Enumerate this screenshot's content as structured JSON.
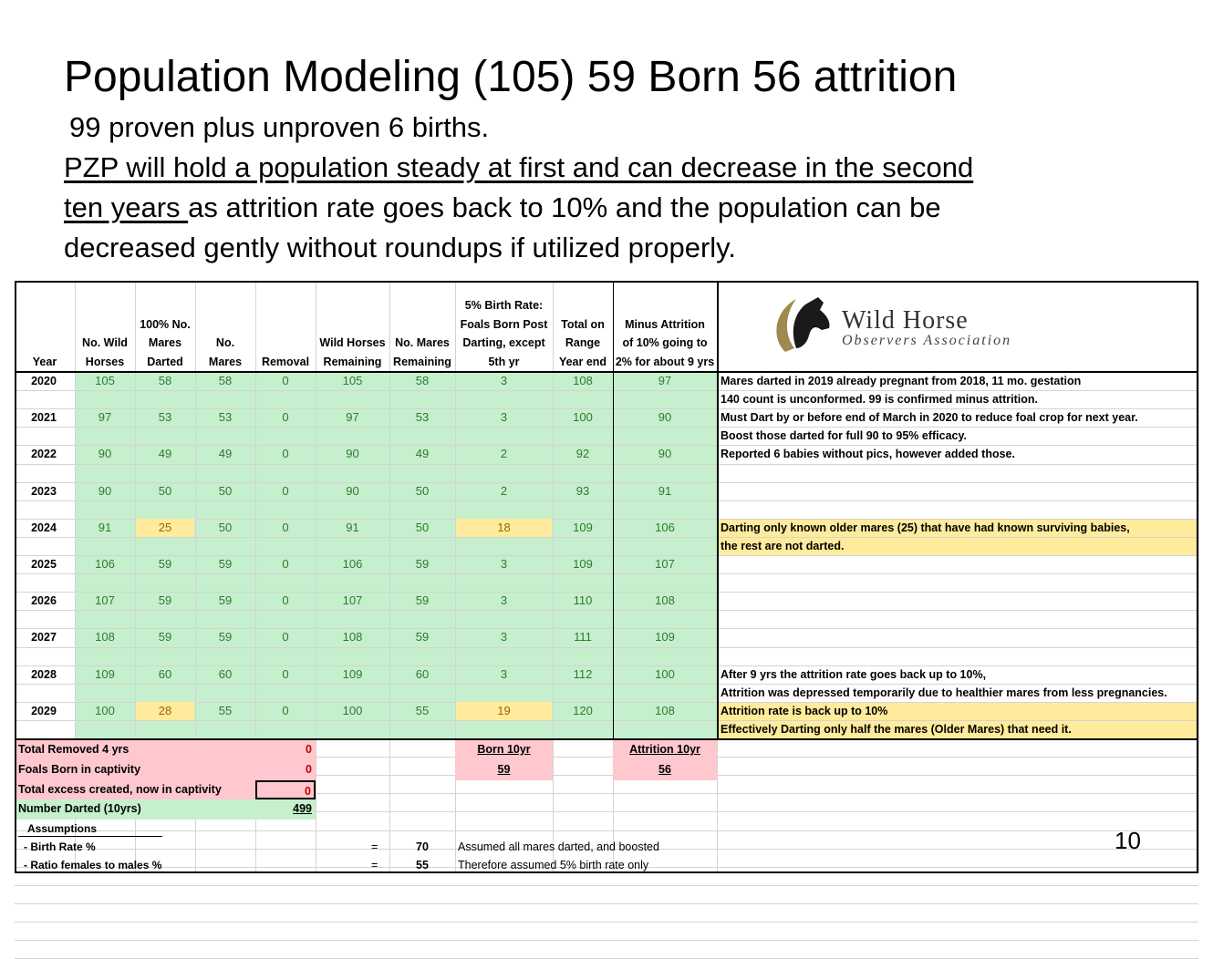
{
  "slide": {
    "title": "Population Modeling (105) 59 Born 56 attrition",
    "line1": "99 proven plus unproven 6 births.",
    "line2_underlined": "PZP will hold a population steady at first and can decrease in the second",
    "line3_underlined": "ten years ",
    "line3_rest": "as attrition rate goes back to 10% and the population can be",
    "line4": "decreased gently without roundups if utilized properly.",
    "page_number": "10"
  },
  "logo": {
    "line1": "Wild Horse",
    "line2": "Observers Association"
  },
  "table": {
    "headers": [
      [
        "Year"
      ],
      [
        "No. Wild",
        "Horses"
      ],
      [
        "100% No.",
        "Mares",
        "Darted"
      ],
      [
        "No.",
        "Mares"
      ],
      [
        "Removal"
      ],
      [
        "Wild Horses",
        "Remaining"
      ],
      [
        "No. Mares",
        "Remaining"
      ],
      [
        "5% Birth Rate:",
        "Foals Born Post",
        "Darting, except",
        "5th yr"
      ],
      [
        "Total on",
        "Range",
        "Year end"
      ],
      [
        "Minus Attrition",
        "of 10% going to",
        "2% for about 9 yrs"
      ]
    ],
    "rows": [
      [
        "2020",
        "105",
        "58",
        "58",
        "0",
        "105",
        "58",
        "3",
        "108",
        "97"
      ],
      [
        "2021",
        "97",
        "53",
        "53",
        "0",
        "97",
        "53",
        "3",
        "100",
        "90"
      ],
      [
        "2022",
        "90",
        "49",
        "49",
        "0",
        "90",
        "49",
        "2",
        "92",
        "90"
      ],
      [
        "2023",
        "90",
        "50",
        "50",
        "0",
        "90",
        "50",
        "2",
        "93",
        "91"
      ],
      [
        "2024",
        "91",
        "25",
        "50",
        "0",
        "91",
        "50",
        "18",
        "109",
        "106"
      ],
      [
        "2025",
        "106",
        "59",
        "59",
        "0",
        "106",
        "59",
        "3",
        "109",
        "107"
      ],
      [
        "2026",
        "107",
        "59",
        "59",
        "0",
        "107",
        "59",
        "3",
        "110",
        "108"
      ],
      [
        "2027",
        "108",
        "59",
        "59",
        "0",
        "108",
        "59",
        "3",
        "111",
        "109"
      ],
      [
        "2028",
        "109",
        "60",
        "60",
        "0",
        "109",
        "60",
        "3",
        "112",
        "100"
      ],
      [
        "2029",
        "100",
        "28",
        "55",
        "0",
        "100",
        "55",
        "19",
        "120",
        "108"
      ]
    ],
    "notes": [
      "Mares darted in 2019 already pregnant from 2018, 11 mo. gestation",
      "140 count is unconformed. 99 is confirmed minus attrition.",
      "Must Dart by or before end of March in 2020 to reduce foal crop for next year.",
      "Boost those darted for full 90 to 95% efficacy.",
      "Reported 6 babies without pics, however added those.",
      "Darting only known older mares (25) that have had known surviving babies,",
      "the rest are not darted.",
      "After 9 yrs the attrition rate goes back up to 10%,",
      "Attrition was depressed temporarily due to healthier mares from less pregnancies.",
      " Attrition rate is back up to 10%",
      "Effectively Darting only half the mares (Older Mares) that need it."
    ],
    "summary": {
      "total_removed_label": "Total Removed 4 yrs",
      "total_removed_value": "0",
      "foals_captivity_label": "Foals Born in captivity",
      "foals_captivity_value": "0",
      "excess_label": "Total excess created, now in captivity",
      "excess_value": "0",
      "darted_label": "Number Darted (10yrs)",
      "darted_value": "499",
      "born_label": "Born 10yr",
      "born_value": "59",
      "attrition_label": "Attrition 10yr",
      "attrition_value": "56",
      "assumptions_label": "Assumptions",
      "birth_rate_label": "- Birth Rate %",
      "birth_rate_eq": "=",
      "birth_rate_value": "70",
      "birth_rate_note": "Assumed all mares darted, and boosted",
      "ratio_label": "- Ratio females to males %",
      "ratio_eq": "=",
      "ratio_value": "55",
      "ratio_note": "Therefore assumed 5% birth rate only"
    }
  }
}
